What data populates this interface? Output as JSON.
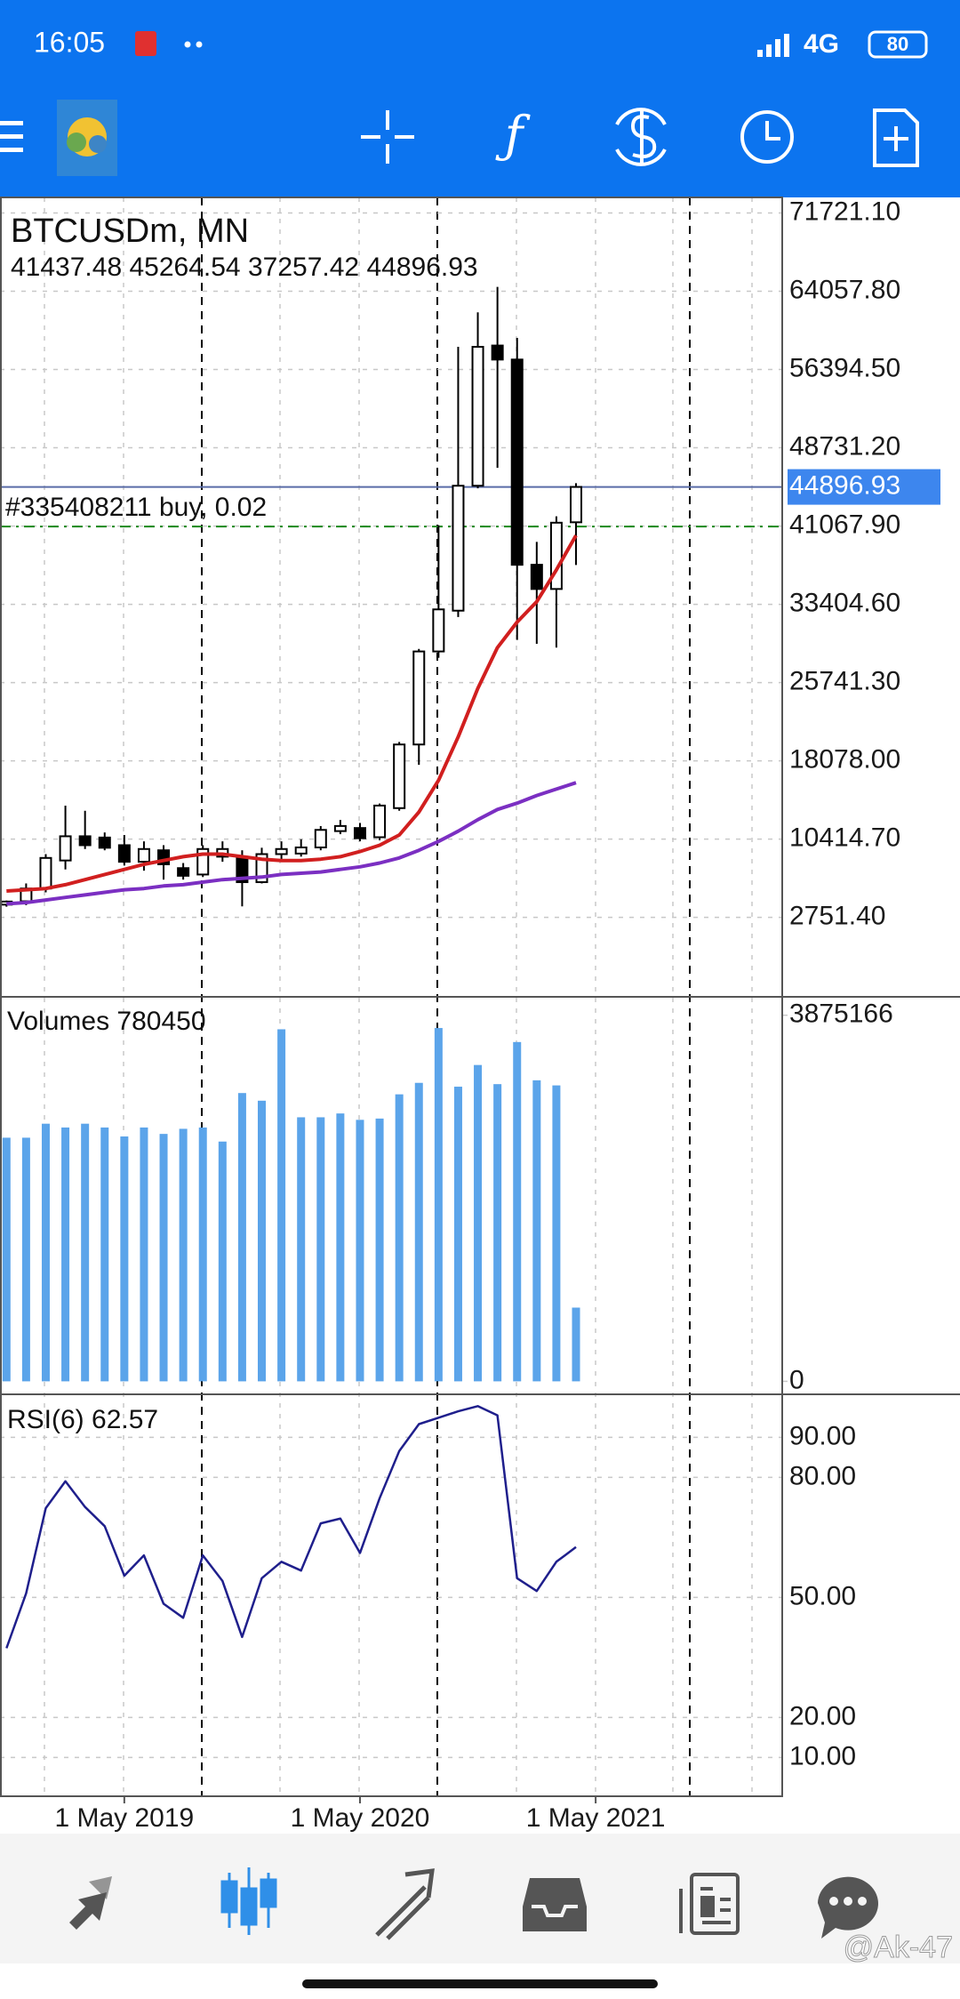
{
  "status_bar": {
    "time": "16:05",
    "network": "4G",
    "battery": "80"
  },
  "watermark": "@Ak-47",
  "chart_data": [
    {
      "type": "candlestick",
      "title": "BTCUSDm, MN",
      "open": [
        4000,
        4329,
        5576,
        8323,
        10694,
        10570,
        9820,
        8198,
        9321,
        7575,
        6950,
        8697,
        8697,
        6201,
        8947,
        9000,
        9600,
        11200,
        11500,
        10600,
        13450,
        19680,
        28790,
        32783,
        45014,
        58742,
        57369,
        37277,
        34905,
        41437.48
      ],
      "high": [
        4400,
        6076,
        8947,
        13689,
        13190,
        11068,
        10819,
        10195,
        9820,
        8073,
        9820,
        10195,
        9321,
        9570,
        10195,
        10400,
        11692,
        12300,
        12000,
        13900,
        19929,
        29040,
        41145,
        58617,
        61987,
        64483,
        59490,
        39523,
        42020,
        45264.54
      ],
      "low": [
        3800,
        3955,
        5203,
        7449,
        9446,
        9321,
        7824,
        7325,
        6451,
        6451,
        6701,
        8198,
        3830,
        6076,
        8198,
        8700,
        9321,
        10900,
        10200,
        10300,
        13190,
        17683,
        28165,
        32159,
        44764,
        46761,
        29914,
        29540,
        29166,
        37257.42
      ],
      "close": [
        4300,
        5576,
        8572,
        10694,
        9820,
        9570,
        8198,
        9446,
        7950,
        6826,
        9446,
        9446,
        6201,
        8947,
        9446,
        9600,
        11318,
        11700,
        10500,
        13700,
        19680,
        28790,
        32908,
        45014,
        58617,
        57369,
        37277,
        34905,
        41395,
        44896.93
      ],
      "up_color": "#ffffff",
      "down_color": "#000000",
      "overlays": [
        {
          "color": "#d11f1f",
          "values": [
            5330,
            5452,
            5576,
            5951,
            6451,
            6950,
            7449,
            7950,
            8323,
            8697,
            8947,
            8947,
            8697,
            8447,
            8323,
            8323,
            8447,
            8697,
            9196,
            9820,
            10819,
            13065,
            16185,
            20428,
            25170,
            29165,
            31661,
            33657,
            36777,
            40147
          ]
        },
        {
          "color": "#7b2fc2",
          "values": [
            4080,
            4204,
            4454,
            4703,
            4953,
            5203,
            5452,
            5576,
            5826,
            5951,
            6201,
            6451,
            6576,
            6701,
            6950,
            7075,
            7200,
            7449,
            7699,
            8073,
            8572,
            9321,
            10195,
            11193,
            12316,
            13315,
            13939,
            14688,
            15312,
            15936
          ]
        }
      ],
      "price_line": {
        "color": "#5a6ca8",
        "label_color": "#3d86ee"
      },
      "order": {
        "label": "#335408211 buy, 0.02",
        "price": 41020,
        "color": "#1f8a1f"
      },
      "xlim": [
        -0.33,
        39.5
      ],
      "xticks": [
        {
          "value": 6,
          "label": "1 May 2019"
        },
        {
          "value": 18,
          "label": "1 May 2020"
        },
        {
          "value": 30,
          "label": "1 May 2021"
        }
      ],
      "ylim": [
        -4940,
        73245
      ],
      "yticks": [
        {
          "value": 71721.1,
          "label": "71721.10"
        },
        {
          "value": 64057.8,
          "label": "64057.80"
        },
        {
          "value": 56394.5,
          "label": "56394.50"
        },
        {
          "value": 48731.2,
          "label": "48731.20"
        },
        {
          "value": 41067.9,
          "label": "41067.90"
        },
        {
          "value": 33404.6,
          "label": "33404.60"
        },
        {
          "value": 25741.3,
          "label": "25741.30"
        },
        {
          "value": 18078,
          "label": "18078.00"
        },
        {
          "value": 10414.7,
          "label": "10414.70"
        },
        {
          "value": 2751.4,
          "label": "2751.40"
        }
      ],
      "grid": true
    },
    {
      "type": "bar",
      "title": "Volumes",
      "color": "#5ba4ea",
      "values": [
        2579000,
        2579000,
        2727000,
        2687000,
        2727000,
        2687000,
        2592000,
        2687000,
        2619000,
        2673000,
        2687000,
        2538000,
        3051500,
        2970500,
        3726600,
        2795000,
        2795000,
        2835500,
        2768000,
        2781500,
        3038000,
        3159500,
        3740000,
        3119000,
        3348500,
        3146000,
        3591600,
        3186500,
        3132500,
        780450
      ],
      "ylim": [
        -128000,
        4060600
      ],
      "yticks": [
        3875166,
        0
      ]
    },
    {
      "type": "line",
      "title": "RSI(6)",
      "color": "#1f1f8c",
      "values": [
        37.3,
        51.0,
        72.3,
        79.0,
        72.6,
        67.8,
        55.4,
        60.5,
        48.4,
        44.9,
        60.5,
        54.1,
        40.1,
        54.8,
        58.9,
        56.7,
        68.5,
        69.7,
        61.1,
        74.8,
        86.6,
        93.3,
        94.9,
        96.5,
        97.8,
        95.5,
        54.8,
        51.6,
        58.9,
        62.57
      ],
      "ylim": [
        0.3,
        100.3
      ],
      "yticks": [
        {
          "value": 90,
          "label": "90.00"
        },
        {
          "value": 80,
          "label": "80.00"
        },
        {
          "value": 50,
          "label": "50.00"
        },
        {
          "value": 20,
          "label": "20.00"
        },
        {
          "value": 10,
          "label": "10.00"
        }
      ],
      "grid": true
    }
  ]
}
